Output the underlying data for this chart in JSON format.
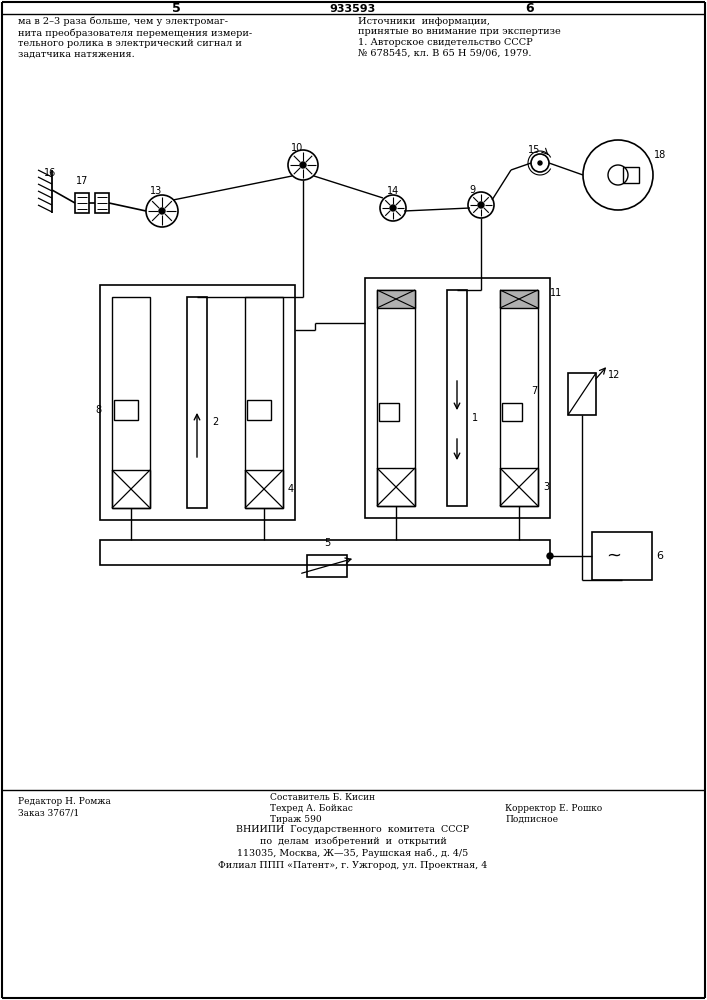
{
  "page_number_left": "5",
  "page_number_right": "6",
  "patent_number": "933593",
  "bg_color": "#ffffff",
  "line_color": "#000000",
  "text_color": "#000000",
  "top_text_left": "ма в 2–3 раза больше, чем у электромаг-\nнита преобразователя перемещения измери-\nтельного ролика в электрический сигнал и\nзадатчика натяжения.",
  "top_text_right": "Источники  информации,\nпринятые во внимание при экспертизе\n1. Авторское свидетельство СССР\n№ 678545, кл. В 65 Н 59/06, 1979.",
  "bottom_text_col1_line1": "Редактор Н. Ромжа",
  "bottom_text_col1_line2": "Заказ 3767/1",
  "bottom_text_col2_line0": "Составитель Б. Кисин",
  "bottom_text_col2_line1": "Техред А. Бойкас",
  "bottom_text_col2_line2": "Тираж 590",
  "bottom_text_col3_line1": "Корректор Е. Рошко",
  "bottom_text_col3_line2": "Подписное",
  "bottom_org_line1": "ВНИИПИ  Государственного  комитета  СССР",
  "bottom_org_line2": "по  делам  изобретений  и  открытий",
  "bottom_org_line3": "113035, Москва, Ж—35, Раушская наб., д. 4/5",
  "bottom_org_line4": "Филиал ППП «Патент», г. Ужгород, ул. Проектная, 4"
}
